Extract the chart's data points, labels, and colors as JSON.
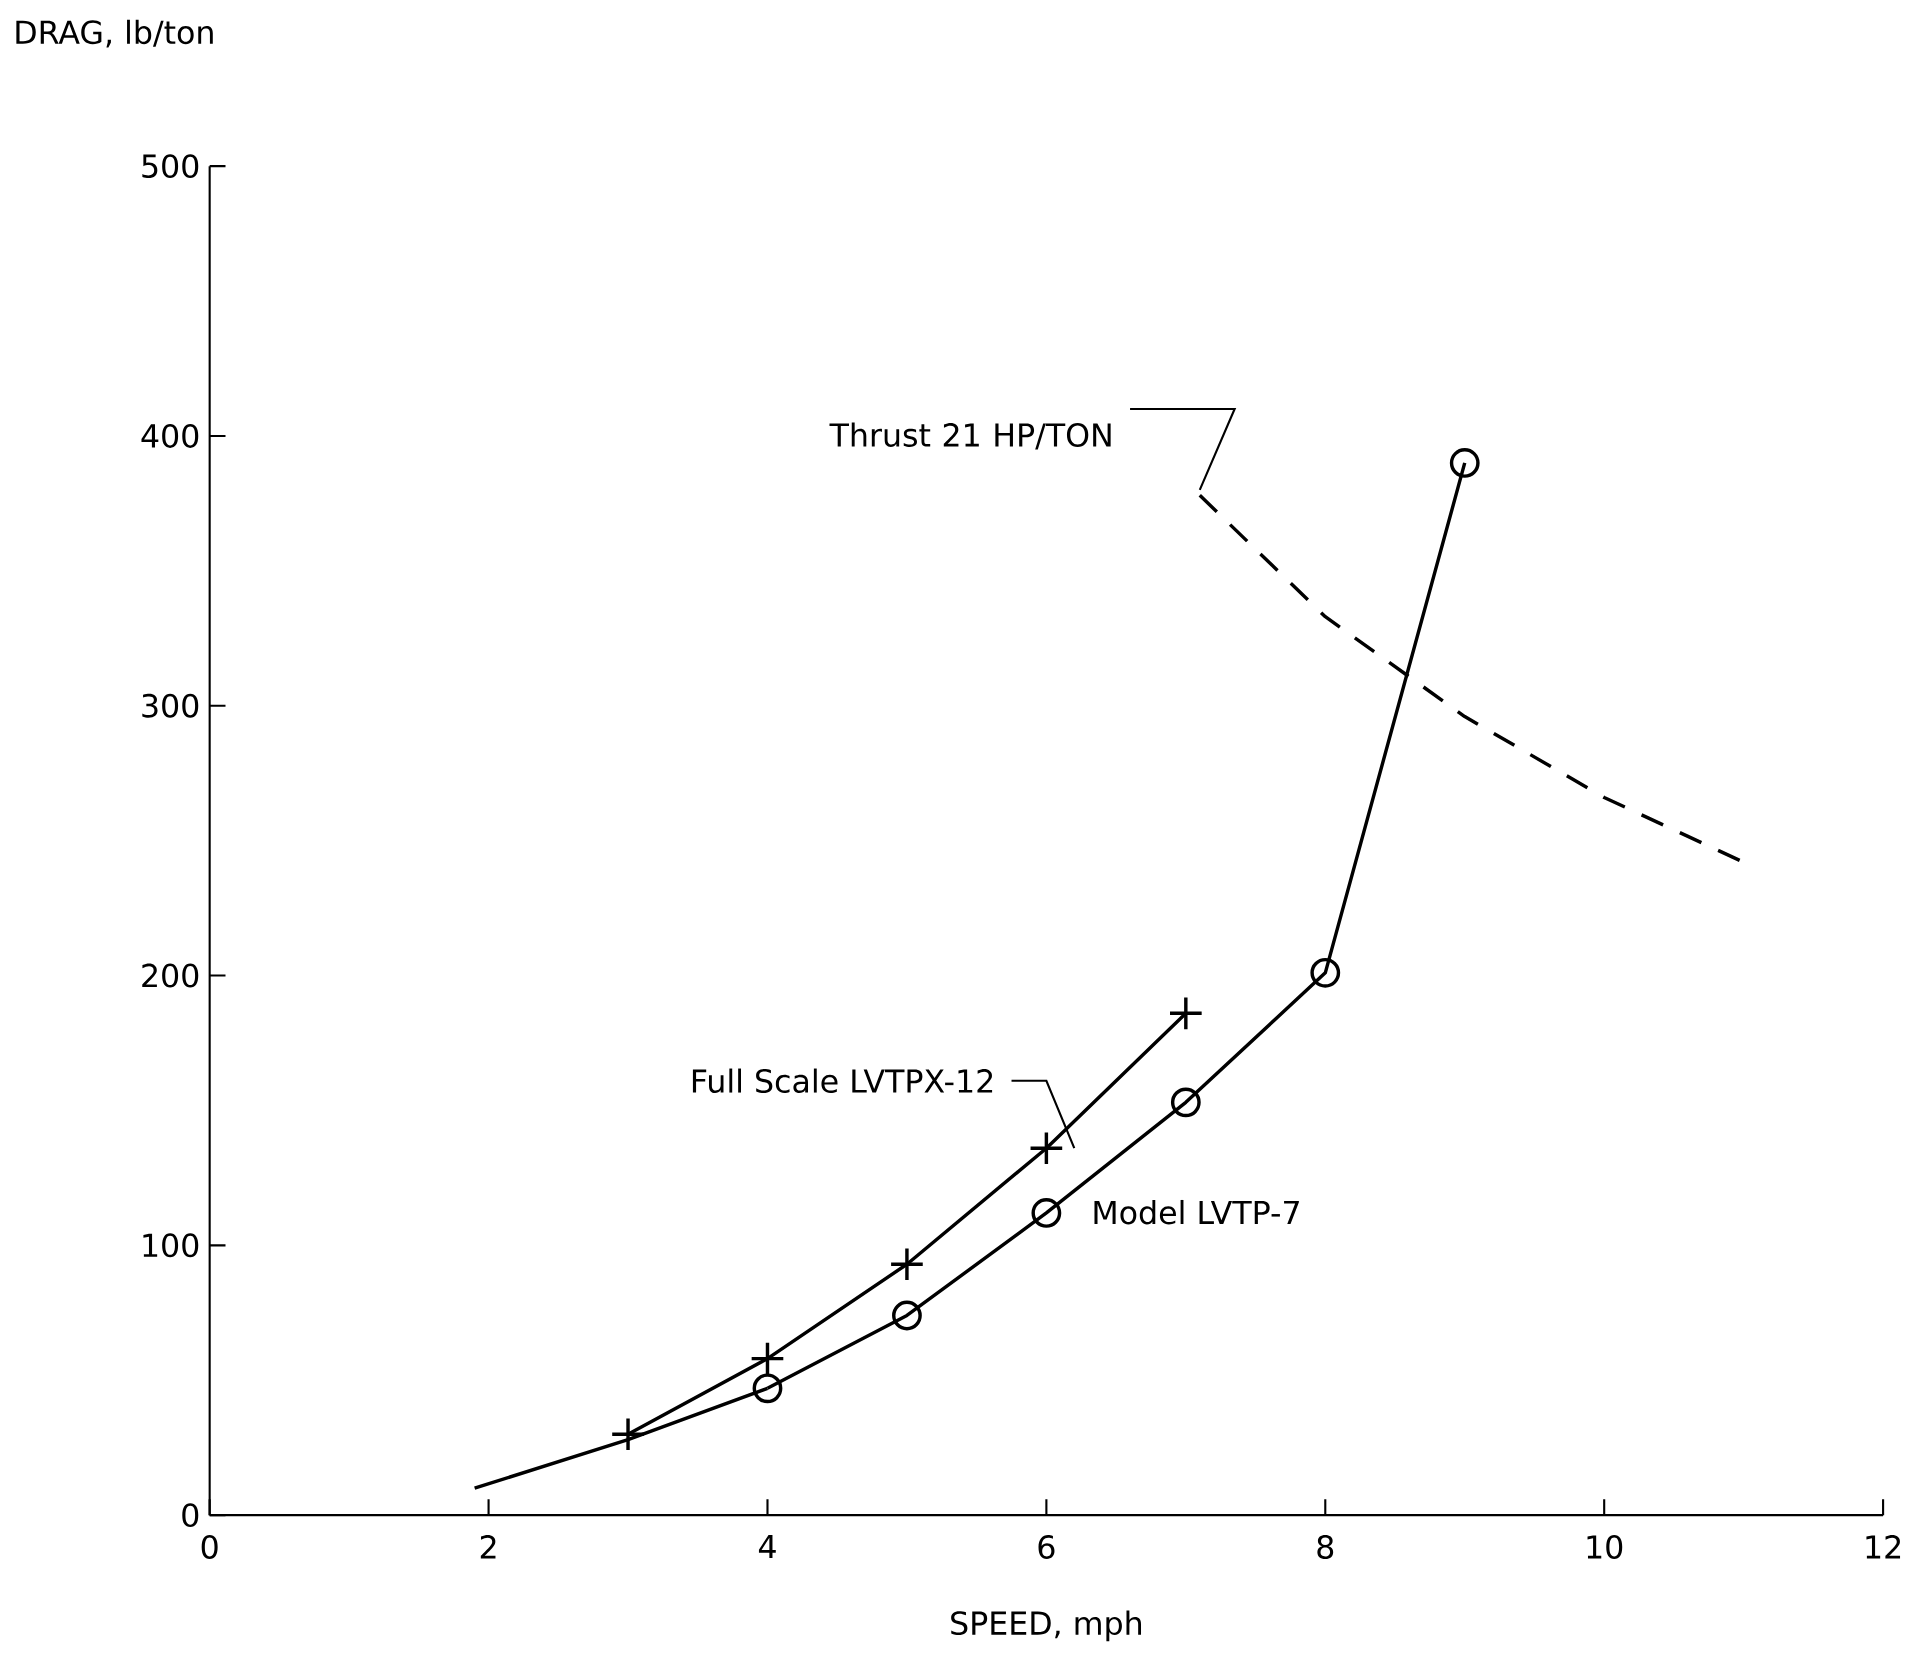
{
  "chart_data": {
    "type": "line",
    "xlabel": "SPEED, mph",
    "ylabel": "DRAG, lb/ton",
    "xlim": [
      0,
      12
    ],
    "xticks": [
      0,
      2,
      4,
      6,
      8,
      10,
      12
    ],
    "ylim": [
      0,
      500
    ],
    "yticks": [
      0,
      100,
      200,
      300,
      400,
      500
    ],
    "grid": false,
    "legend": false,
    "series": [
      {
        "name": "Full Scale LVTPX-12",
        "color": "#000000",
        "marker": "cross",
        "line_style": "solid",
        "x": [
          3,
          4,
          5,
          6,
          7
        ],
        "values": [
          30,
          58,
          93,
          136,
          186
        ]
      },
      {
        "name": "Model LVTP-7",
        "color": "#000000",
        "marker": "circle",
        "line_style": "solid",
        "x": [
          4,
          5,
          6,
          7,
          8,
          9
        ],
        "values": [
          47,
          74,
          112,
          153,
          201,
          390
        ]
      },
      {
        "color": "#000000",
        "marker": "none",
        "line_style": "solid",
        "x": [
          1.9,
          3,
          4
        ],
        "values": [
          10,
          28,
          47
        ]
      },
      {
        "name": "Thrust 21 HP/TON",
        "color": "#000000",
        "marker": "none",
        "line_style": "dashed",
        "x": [
          7.1,
          8,
          9,
          10,
          11
        ],
        "values": [
          378,
          333,
          296,
          266,
          242
        ]
      }
    ]
  }
}
